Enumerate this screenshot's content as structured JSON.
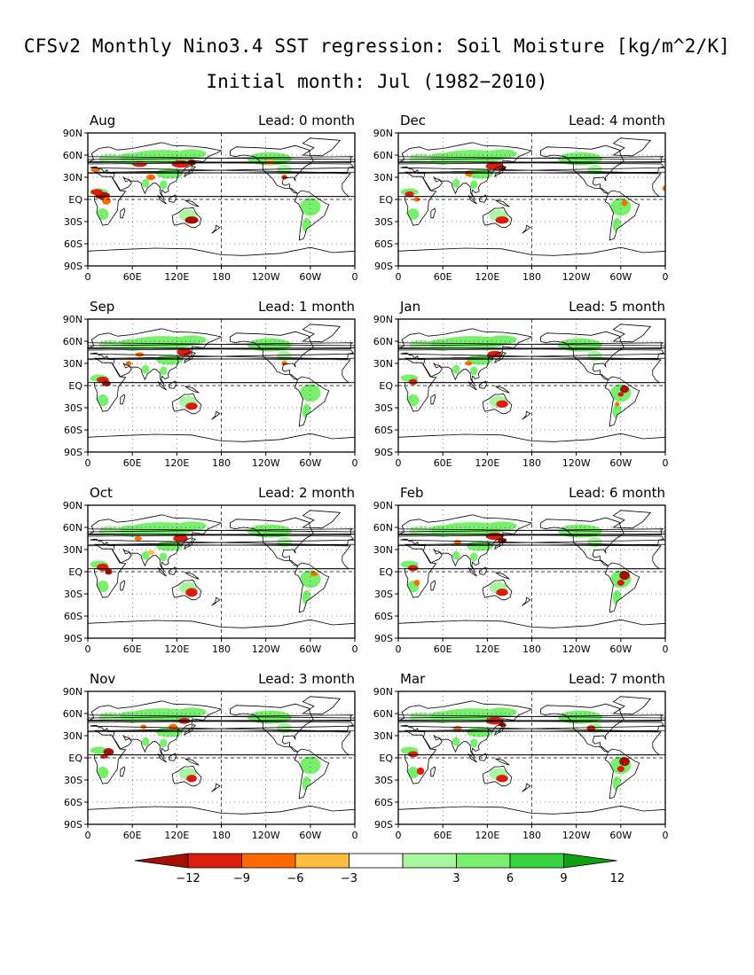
{
  "title": "CFSv2 Monthly Nino3.4 SST regression: Soil Moisture [kg/m^2/K]",
  "subtitle": "Initial month: Jul (1982−2010)",
  "lat_labels": [
    "90N",
    "60N",
    "30N",
    "EQ",
    "30S",
    "60S",
    "90S"
  ],
  "lon_labels": [
    "0",
    "60E",
    "120E",
    "180",
    "120W",
    "60W",
    "0"
  ],
  "panels": [
    {
      "month": "Aug",
      "lead": "Lead: 0 month"
    },
    {
      "month": "Dec",
      "lead": "Lead: 4 month"
    },
    {
      "month": "Sep",
      "lead": "Lead: 1 month"
    },
    {
      "month": "Jan",
      "lead": "Lead: 5 month"
    },
    {
      "month": "Oct",
      "lead": "Lead: 2 month"
    },
    {
      "month": "Feb",
      "lead": "Lead: 6 month"
    },
    {
      "month": "Nov",
      "lead": "Lead: 3 month"
    },
    {
      "month": "Mar",
      "lead": "Lead: 7 month"
    }
  ],
  "colorbar": {
    "labels": [
      "−12",
      "−9",
      "−6",
      "−3",
      "3",
      "6",
      "9",
      "12"
    ],
    "colors": [
      "#a50f00",
      "#db1e0f",
      "#ff6a00",
      "#ffbe3c",
      "#ffffff",
      "#aaf5a0",
      "#78f06e",
      "#37d23c",
      "#0fa012"
    ]
  },
  "colors": {
    "land_green": "#78f06e",
    "land_green_dark": "#37d23c",
    "land_red": "#db1e0f",
    "land_orange": "#ff6a00"
  }
}
